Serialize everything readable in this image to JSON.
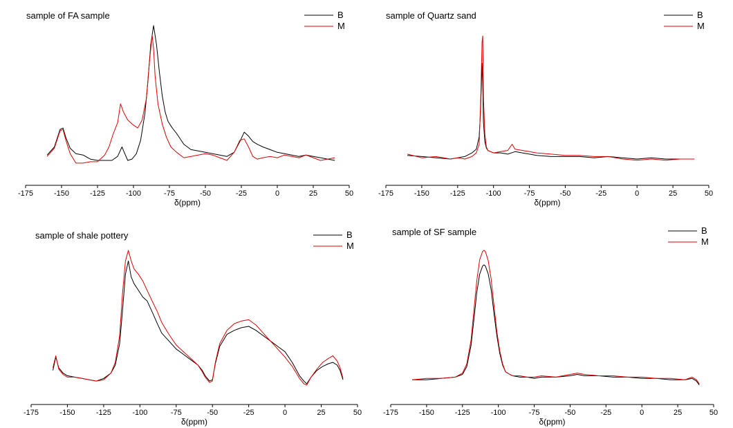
{
  "chart_data": [
    {
      "type": "line",
      "title": "sample of FA sample",
      "xlabel": "δ(ppm)",
      "ylabel": "",
      "xlim": [
        -175,
        50
      ],
      "xticks": [
        -175,
        -150,
        -125,
        -100,
        -75,
        -50,
        -25,
        0,
        25,
        50
      ],
      "legend_position": "top-right",
      "series": [
        {
          "name": "B",
          "color": "#000000",
          "x": [
            -160,
            -155,
            -151,
            -149,
            -147,
            -144,
            -140,
            -135,
            -130,
            -125,
            -120,
            -115,
            -111,
            -108,
            -106,
            -104,
            -101,
            -98,
            -95,
            -92,
            -90,
            -88,
            -86,
            -84,
            -82,
            -80,
            -78,
            -76,
            -73,
            -70,
            -65,
            -60,
            -55,
            -50,
            -45,
            -40,
            -35,
            -30,
            -26,
            -23,
            -20,
            -17,
            -14,
            -10,
            -5,
            0,
            5,
            10,
            15,
            20,
            25,
            30,
            35,
            40
          ],
          "y": [
            0.04,
            0.1,
            0.23,
            0.24,
            0.17,
            0.09,
            0.05,
            0.04,
            0.01,
            0.0,
            0.0,
            0.0,
            0.03,
            0.1,
            0.05,
            0.0,
            0.01,
            0.05,
            0.15,
            0.35,
            0.58,
            0.86,
            1.0,
            0.86,
            0.66,
            0.48,
            0.36,
            0.29,
            0.24,
            0.2,
            0.12,
            0.08,
            0.07,
            0.06,
            0.05,
            0.04,
            0.03,
            0.06,
            0.14,
            0.21,
            0.18,
            0.14,
            0.12,
            0.1,
            0.08,
            0.06,
            0.05,
            0.04,
            0.03,
            0.04,
            0.03,
            0.02,
            0.01,
            0.0
          ]
        },
        {
          "name": "M",
          "color": "#e00000",
          "x": [
            -160,
            -155,
            -151,
            -149,
            -147,
            -144,
            -140,
            -135,
            -130,
            -125,
            -120,
            -117,
            -114,
            -111,
            -109,
            -107,
            -104,
            -101,
            -97,
            -94,
            -91,
            -89,
            -87,
            -86,
            -85,
            -83,
            -80,
            -77,
            -74,
            -70,
            -65,
            -60,
            -55,
            -50,
            -45,
            -40,
            -35,
            -30,
            -26,
            -23,
            -20,
            -17,
            -14,
            -10,
            -5,
            0,
            5,
            10,
            15,
            20,
            25,
            30,
            35,
            40
          ],
          "y": [
            0.03,
            0.09,
            0.22,
            0.23,
            0.15,
            0.05,
            -0.02,
            -0.02,
            -0.01,
            -0.01,
            0.04,
            0.1,
            0.2,
            0.28,
            0.42,
            0.36,
            0.3,
            0.27,
            0.24,
            0.3,
            0.46,
            0.72,
            0.93,
            0.83,
            0.63,
            0.42,
            0.27,
            0.17,
            0.1,
            0.06,
            0.02,
            0.03,
            0.04,
            0.05,
            0.04,
            0.02,
            0.0,
            0.06,
            0.15,
            0.16,
            0.1,
            0.03,
            0.01,
            0.02,
            0.03,
            0.02,
            0.04,
            0.03,
            0.02,
            0.04,
            0.02,
            0.0,
            0.01,
            0.02
          ]
        }
      ]
    },
    {
      "type": "line",
      "title": "sample of Quartz sand",
      "xlabel": "δ(ppm)",
      "ylabel": "",
      "xlim": [
        -175,
        50
      ],
      "xticks": [
        -175,
        -150,
        -125,
        -100,
        -75,
        -50,
        -25,
        0,
        25,
        50
      ],
      "legend_position": "top-right",
      "series": [
        {
          "name": "B",
          "color": "#000000",
          "x": [
            -160,
            -150,
            -140,
            -130,
            -125,
            -120,
            -115,
            -112,
            -110,
            -109,
            -108,
            -107.5,
            -107,
            -106,
            -105,
            -104,
            -102,
            -100,
            -95,
            -90,
            -85,
            -80,
            -75,
            -70,
            -60,
            -50,
            -40,
            -30,
            -20,
            -10,
            0,
            10,
            20,
            30,
            40
          ],
          "y": [
            0.03,
            0.02,
            0.01,
            0.0,
            0.01,
            0.02,
            0.05,
            0.08,
            0.18,
            0.4,
            0.78,
            0.62,
            0.3,
            0.14,
            0.09,
            0.07,
            0.06,
            0.05,
            0.05,
            0.04,
            0.06,
            0.05,
            0.04,
            0.03,
            0.02,
            0.02,
            0.02,
            0.01,
            0.02,
            0.01,
            0.0,
            0.01,
            0.0,
            0.0,
            0.0
          ]
        },
        {
          "name": "M",
          "color": "#e00000",
          "x": [
            -160,
            -150,
            -140,
            -130,
            -125,
            -120,
            -115,
            -112,
            -110,
            -109,
            -108,
            -107.5,
            -107,
            -106,
            -105,
            -104,
            -102,
            -100,
            -95,
            -90,
            -87,
            -85,
            -80,
            -75,
            -70,
            -60,
            -50,
            -40,
            -30,
            -20,
            -10,
            0,
            10,
            20,
            30,
            40
          ],
          "y": [
            0.04,
            0.01,
            0.02,
            0.0,
            0.01,
            0.0,
            0.02,
            0.05,
            0.12,
            0.45,
            0.95,
            1.0,
            0.5,
            0.2,
            0.1,
            0.07,
            0.06,
            0.05,
            0.06,
            0.07,
            0.12,
            0.08,
            0.07,
            0.06,
            0.05,
            0.04,
            0.03,
            0.03,
            0.02,
            0.02,
            0.0,
            -0.01,
            0.0,
            -0.01,
            0.0,
            0.0
          ]
        }
      ]
    },
    {
      "type": "line",
      "title": "sample of shale pottery",
      "xlabel": "δ(ppm)",
      "ylabel": "",
      "xlim": [
        -175,
        50
      ],
      "xticks": [
        -175,
        -150,
        -125,
        -100,
        -75,
        -50,
        -25,
        0,
        25,
        50
      ],
      "legend_position": "top-right",
      "series": [
        {
          "name": "B",
          "color": "#000000",
          "x": [
            -160,
            -158,
            -156,
            -153,
            -150,
            -145,
            -140,
            -135,
            -130,
            -125,
            -120,
            -117,
            -114,
            -112,
            -110,
            -108,
            -106,
            -104,
            -101,
            -98,
            -95,
            -92,
            -88,
            -85,
            -80,
            -75,
            -70,
            -65,
            -60,
            -57,
            -55,
            -52,
            -50,
            -48,
            -45,
            -40,
            -35,
            -30,
            -25,
            -20,
            -15,
            -10,
            -5,
            0,
            5,
            10,
            13,
            15,
            18,
            22,
            26,
            30,
            33,
            36,
            38,
            40
          ],
          "y": [
            0.1,
            0.2,
            0.12,
            0.08,
            0.06,
            0.05,
            0.04,
            0.03,
            0.02,
            0.04,
            0.08,
            0.14,
            0.3,
            0.55,
            0.82,
            0.92,
            0.8,
            0.75,
            0.7,
            0.65,
            0.62,
            0.55,
            0.45,
            0.38,
            0.32,
            0.26,
            0.22,
            0.18,
            0.14,
            0.1,
            0.06,
            0.02,
            0.03,
            0.15,
            0.28,
            0.37,
            0.4,
            0.42,
            0.43,
            0.4,
            0.36,
            0.32,
            0.28,
            0.24,
            0.16,
            0.06,
            0.02,
            0.0,
            0.05,
            0.1,
            0.13,
            0.15,
            0.16,
            0.14,
            0.1,
            0.03
          ]
        },
        {
          "name": "M",
          "color": "#e00000",
          "x": [
            -160,
            -158,
            -156,
            -153,
            -150,
            -145,
            -140,
            -135,
            -130,
            -125,
            -120,
            -117,
            -114,
            -112,
            -110,
            -108,
            -106,
            -104,
            -101,
            -98,
            -95,
            -92,
            -88,
            -85,
            -80,
            -75,
            -70,
            -65,
            -60,
            -57,
            -55,
            -52,
            -50,
            -48,
            -45,
            -40,
            -35,
            -30,
            -25,
            -20,
            -15,
            -10,
            -5,
            0,
            5,
            10,
            13,
            15,
            18,
            22,
            26,
            30,
            33,
            36,
            38,
            40
          ],
          "y": [
            0.12,
            0.21,
            0.11,
            0.07,
            0.05,
            0.05,
            0.04,
            0.03,
            0.02,
            0.03,
            0.08,
            0.16,
            0.36,
            0.68,
            0.92,
            1.0,
            0.92,
            0.86,
            0.82,
            0.77,
            0.7,
            0.63,
            0.54,
            0.46,
            0.37,
            0.29,
            0.24,
            0.19,
            0.14,
            0.09,
            0.05,
            0.01,
            0.02,
            0.16,
            0.3,
            0.4,
            0.45,
            0.47,
            0.48,
            0.44,
            0.38,
            0.32,
            0.26,
            0.2,
            0.13,
            0.04,
            0.0,
            -0.01,
            0.05,
            0.11,
            0.16,
            0.19,
            0.21,
            0.17,
            0.12,
            0.04
          ]
        }
      ]
    },
    {
      "type": "line",
      "title": "sample of SF sample",
      "xlabel": "δ(ppm)",
      "ylabel": "",
      "xlim": [
        -175,
        50
      ],
      "xticks": [
        -175,
        -150,
        -125,
        -100,
        -75,
        -50,
        -25,
        0,
        25,
        50
      ],
      "legend_position": "top-right",
      "series": [
        {
          "name": "B",
          "color": "#000000",
          "x": [
            -160,
            -150,
            -140,
            -130,
            -125,
            -122,
            -119,
            -117,
            -115,
            -113,
            -111,
            -110,
            -109,
            -107,
            -105,
            -103,
            -101,
            -99,
            -97,
            -95,
            -92,
            -90,
            -85,
            -80,
            -75,
            -70,
            -60,
            -50,
            -45,
            -40,
            -30,
            -20,
            -10,
            0,
            10,
            20,
            30,
            35,
            38,
            40
          ],
          "y": [
            0.02,
            0.02,
            0.03,
            0.04,
            0.06,
            0.12,
            0.28,
            0.48,
            0.68,
            0.82,
            0.88,
            0.89,
            0.88,
            0.82,
            0.7,
            0.52,
            0.35,
            0.22,
            0.13,
            0.08,
            0.06,
            0.05,
            0.04,
            0.04,
            0.03,
            0.04,
            0.04,
            0.05,
            0.06,
            0.05,
            0.05,
            0.04,
            0.04,
            0.03,
            0.03,
            0.02,
            0.02,
            0.03,
            0.01,
            -0.02
          ]
        },
        {
          "name": "M",
          "color": "#e00000",
          "x": [
            -160,
            -150,
            -140,
            -130,
            -125,
            -122,
            -119,
            -117,
            -115,
            -113,
            -111,
            -110,
            -109,
            -107,
            -105,
            -103,
            -101,
            -99,
            -97,
            -95,
            -92,
            -90,
            -85,
            -80,
            -75,
            -70,
            -60,
            -50,
            -45,
            -40,
            -30,
            -20,
            -10,
            0,
            10,
            20,
            30,
            35,
            38,
            40
          ],
          "y": [
            0.02,
            0.03,
            0.03,
            0.04,
            0.07,
            0.14,
            0.32,
            0.55,
            0.77,
            0.93,
            0.99,
            1.0,
            0.99,
            0.92,
            0.78,
            0.58,
            0.38,
            0.24,
            0.14,
            0.08,
            0.06,
            0.05,
            0.05,
            0.04,
            0.04,
            0.05,
            0.04,
            0.06,
            0.07,
            0.06,
            0.05,
            0.05,
            0.04,
            0.04,
            0.03,
            0.03,
            0.02,
            0.04,
            0.02,
            -0.01
          ]
        }
      ]
    }
  ]
}
